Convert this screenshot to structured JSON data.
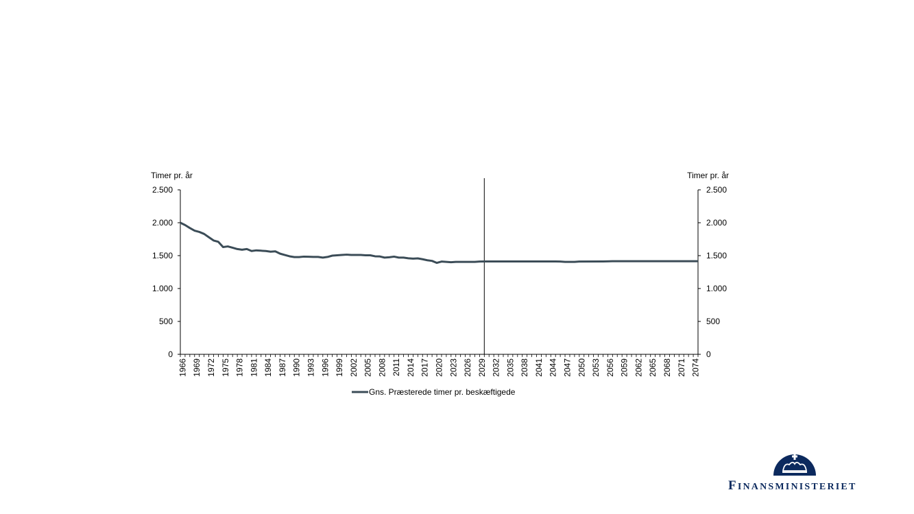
{
  "chart_data": {
    "type": "line",
    "ylabel_left": "Timer pr. år",
    "ylabel_right": "Timer pr. år",
    "ylim": [
      0,
      2500
    ],
    "yticks": [
      0,
      500,
      1000,
      1500,
      2000,
      2500
    ],
    "ytick_labels": [
      "0",
      "500",
      "1.000",
      "1.500",
      "2.000",
      "2.500"
    ],
    "xlim": [
      1966,
      2075
    ],
    "xtick_years": [
      1966,
      1969,
      1972,
      1975,
      1978,
      1981,
      1984,
      1987,
      1990,
      1993,
      1996,
      1999,
      2002,
      2005,
      2008,
      2011,
      2014,
      2017,
      2020,
      2023,
      2026,
      2029,
      2032,
      2035,
      2038,
      2041,
      2044,
      2047,
      2050,
      2053,
      2056,
      2059,
      2062,
      2065,
      2068,
      2071,
      2074
    ],
    "vertical_marker_year": 2030,
    "grid": false,
    "legend_position": "bottom",
    "series": [
      {
        "name": "Gns. Præsterede timer pr. beskæftigede",
        "color": "#3b4c57",
        "x": [
          1966,
          1967,
          1968,
          1969,
          1970,
          1971,
          1972,
          1973,
          1974,
          1975,
          1976,
          1977,
          1978,
          1979,
          1980,
          1981,
          1982,
          1983,
          1984,
          1985,
          1986,
          1987,
          1988,
          1989,
          1990,
          1991,
          1992,
          1993,
          1994,
          1995,
          1996,
          1997,
          1998,
          1999,
          2000,
          2001,
          2002,
          2003,
          2004,
          2005,
          2006,
          2007,
          2008,
          2009,
          2010,
          2011,
          2012,
          2013,
          2014,
          2015,
          2016,
          2017,
          2018,
          2019,
          2020,
          2021,
          2022,
          2023,
          2024,
          2025,
          2026,
          2027,
          2028,
          2029,
          2030,
          2035,
          2040,
          2045,
          2046,
          2047,
          2048,
          2049,
          2050,
          2055,
          2057,
          2060,
          2065,
          2070,
          2075
        ],
        "y": [
          2000,
          1965,
          1920,
          1880,
          1860,
          1830,
          1780,
          1730,
          1710,
          1630,
          1640,
          1620,
          1600,
          1590,
          1600,
          1570,
          1580,
          1575,
          1570,
          1560,
          1565,
          1530,
          1510,
          1490,
          1478,
          1478,
          1485,
          1483,
          1480,
          1480,
          1470,
          1480,
          1500,
          1505,
          1510,
          1515,
          1510,
          1510,
          1510,
          1505,
          1505,
          1490,
          1488,
          1470,
          1475,
          1485,
          1470,
          1470,
          1460,
          1455,
          1458,
          1445,
          1430,
          1420,
          1390,
          1410,
          1405,
          1400,
          1405,
          1405,
          1405,
          1405,
          1405,
          1410,
          1412,
          1412,
          1412,
          1412,
          1410,
          1405,
          1405,
          1405,
          1410,
          1412,
          1415,
          1415,
          1415,
          1415,
          1415
        ]
      }
    ]
  },
  "logo": {
    "text": "Finansministeriet"
  }
}
